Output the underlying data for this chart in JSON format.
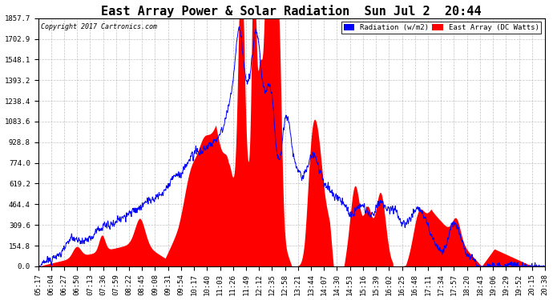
{
  "title": "East Array Power & Solar Radiation  Sun Jul 2  20:44",
  "copyright": "Copyright 2017 Cartronics.com",
  "legend_radiation": "Radiation (w/m2)",
  "legend_east": "East Array (DC Watts)",
  "ylabel_values": [
    0.0,
    154.8,
    309.6,
    464.4,
    619.2,
    774.0,
    928.8,
    1083.6,
    1238.4,
    1393.2,
    1548.1,
    1702.9,
    1857.7
  ],
  "ymax": 1857.7,
  "radiation_color": "#0000ff",
  "east_color": "#ff0000",
  "background_color": "#ffffff",
  "plot_bg_color": "#ffffff",
  "grid_color": "#bbbbbb",
  "title_fontsize": 11,
  "tick_fontsize": 6.5,
  "time_labels": [
    "05:17",
    "06:04",
    "06:27",
    "06:50",
    "07:13",
    "07:36",
    "07:59",
    "08:22",
    "08:45",
    "09:08",
    "09:31",
    "09:54",
    "10:17",
    "10:40",
    "11:03",
    "11:26",
    "11:49",
    "12:12",
    "12:35",
    "12:58",
    "13:21",
    "13:44",
    "14:07",
    "14:30",
    "14:53",
    "15:16",
    "15:39",
    "16:02",
    "16:25",
    "16:48",
    "17:11",
    "17:34",
    "17:57",
    "18:20",
    "18:43",
    "19:06",
    "19:29",
    "19:52",
    "20:15",
    "20:38"
  ]
}
